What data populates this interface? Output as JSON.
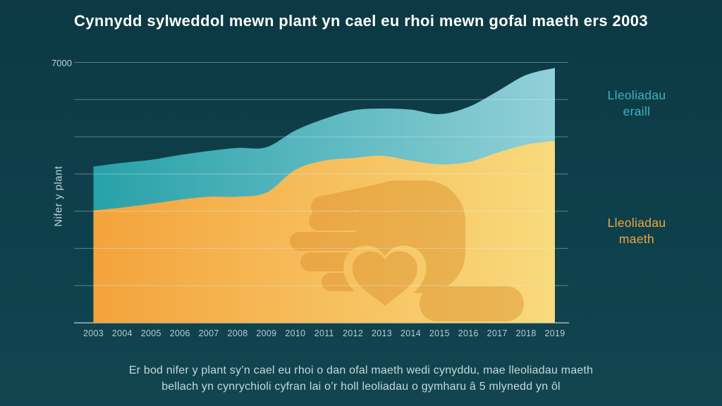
{
  "title": "Cynnydd sylweddol mewn plant yn cael eu rhoi mewn gofal maeth ers 2003",
  "y_axis": {
    "label": "Nifer y plant",
    "top_tick": "7000"
  },
  "legend": {
    "other": "Lleoliadau eraill",
    "foster": "Lleoliadau maeth"
  },
  "caption": {
    "lines": [
      "Er bod nifer y plant sy’n cael eu rhoi o dan ofal maeth wedi cynyddu, mae lleoliadau maeth",
      "bellach yn cynrychioli cyfran lai o’r holl leoliadau o gymharu â 5 mlynedd yn ôl"
    ]
  },
  "colors": {
    "background_top": "#0C3943",
    "background_mid": "#0E404B",
    "background_bottom": "#12454F",
    "teal_left": "#27A1A8",
    "teal_right": "#92D0D8",
    "orange_left": "#F4A33C",
    "orange_right": "#F8DA7D",
    "watermark": "#D98A26",
    "gridline": "rgba(223,238,240,0.38)",
    "axis_line": "rgba(186,206,210,0.85)",
    "title_text": "#FFFFFF",
    "axis_text": "#BFD3D6",
    "tick_text": "#B7CCD0",
    "legend_other_text": "#3CB3BE",
    "legend_foster_text": "#F0A740",
    "caption_text": "#C7D8DA"
  },
  "chart_data": {
    "type": "area",
    "stacked": true,
    "title": "Cynnydd sylweddol mewn plant yn cael eu rhoi mewn gofal maeth ers 2003",
    "x": [
      2003,
      2004,
      2005,
      2006,
      2007,
      2008,
      2009,
      2010,
      2011,
      2012,
      2013,
      2014,
      2015,
      2016,
      2017,
      2018,
      2019
    ],
    "series": [
      {
        "name": "Lleoliadau maeth",
        "color": "#F5A843",
        "values": [
          3020,
          3100,
          3200,
          3310,
          3390,
          3390,
          3500,
          4110,
          4360,
          4430,
          4490,
          4360,
          4260,
          4320,
          4570,
          4790,
          4890
        ]
      },
      {
        "name": "Lleoliadau eraill",
        "color": "#2FA7AE",
        "values": [
          1180,
          1200,
          1180,
          1200,
          1230,
          1310,
          1220,
          1060,
          1120,
          1280,
          1270,
          1370,
          1350,
          1480,
          1650,
          1870,
          1960
        ]
      }
    ],
    "totals": [
      4200,
      4300,
      4380,
      4510,
      4620,
      4700,
      4720,
      5170,
      5480,
      5710,
      5760,
      5730,
      5610,
      5800,
      6220,
      6660,
      6850
    ],
    "xlabel": "",
    "ylabel": "Nifer y plant",
    "ylim": [
      0,
      7000
    ],
    "visible_y_ticks": [
      "7000"
    ],
    "gridline_interval": 1000,
    "grid": true,
    "legend_position": "right"
  }
}
